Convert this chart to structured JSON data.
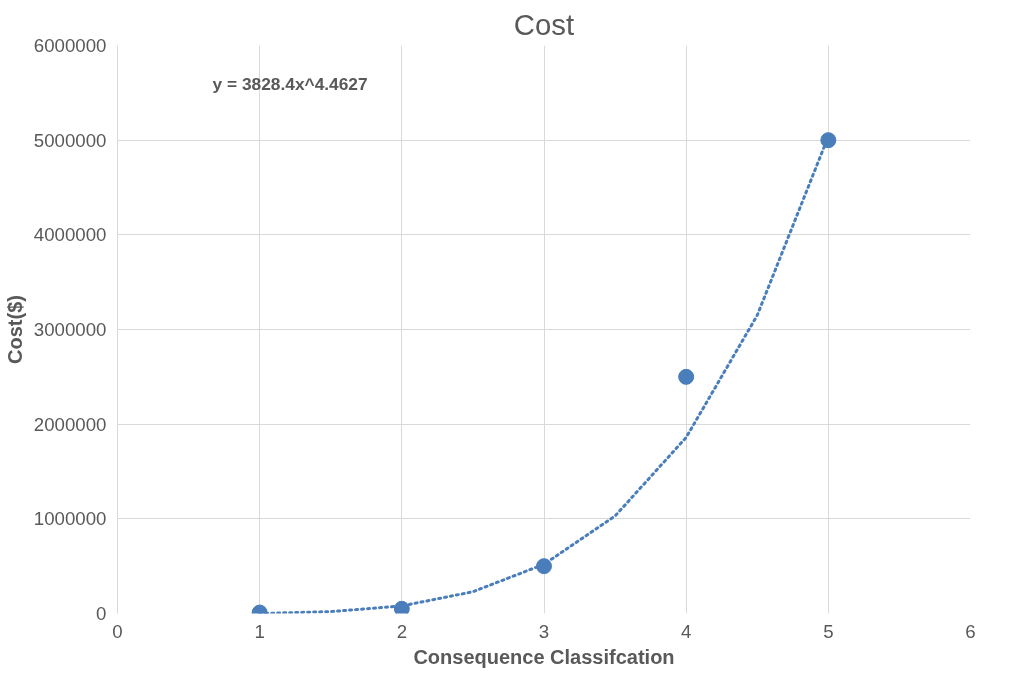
{
  "chart_data": {
    "type": "scatter",
    "title": "Cost",
    "xlabel": "Consequence Classifcation",
    "ylabel": "Cost($)",
    "x": [
      1,
      2,
      3,
      4,
      5
    ],
    "series": [
      {
        "color": "#4a7ebb",
        "values": [
          10000,
          50000,
          500000,
          2500000,
          5000000
        ],
        "marker": "circle"
      },
      {
        "type": "line",
        "color": "#4a7ebb",
        "line_style": "dotted",
        "marker": "none",
        "x": [
          1,
          1.5,
          2,
          2.5,
          3,
          3.5,
          4,
          4.5,
          5
        ],
        "values": [
          0,
          20000,
          80000,
          230000,
          520000,
          1030000,
          1860000,
          3150000,
          5040000
        ]
      }
    ],
    "annotations": [
      "y = 3828.4x^4.4627"
    ],
    "xlim": [
      0,
      6
    ],
    "xticks": [
      0,
      1,
      2,
      3,
      4,
      5,
      6
    ],
    "ylim": [
      0,
      6000000
    ],
    "yticks": [
      0,
      1000000,
      2000000,
      3000000,
      4000000,
      5000000,
      6000000
    ],
    "grid": true,
    "legend": false
  }
}
